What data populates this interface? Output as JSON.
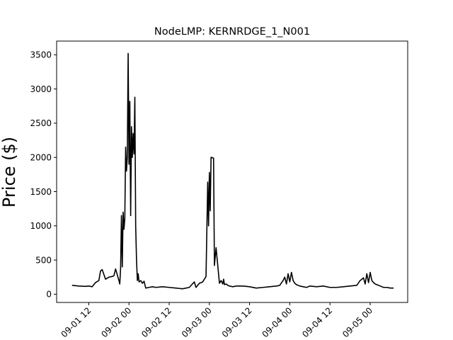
{
  "chart_data": {
    "type": "line",
    "title": "NodeLMP: KERNRDGE_1_N001",
    "xlabel": "",
    "ylabel": "Price ($)",
    "xlim": [
      "2019-09-01 02:24",
      "2019-09-05 11:12"
    ],
    "ylim": [
      -120,
      3700
    ],
    "x_ticks": [
      "2019-09-01 12:00",
      "2019-09-02 00:00",
      "2019-09-02 12:00",
      "2019-09-03 00:00",
      "2019-09-03 12:00",
      "2019-09-04 00:00",
      "2019-09-04 12:00",
      "2019-09-05 00:00"
    ],
    "x_tick_labels": [
      "09-01 12",
      "09-02 00",
      "09-02 12",
      "09-03 00",
      "09-03 12",
      "09-04 00",
      "09-04 12",
      "09-05 00"
    ],
    "y_ticks": [
      0,
      500,
      1000,
      1500,
      2000,
      2500,
      3000,
      3500
    ],
    "y_tick_labels": [
      "0",
      "500",
      "1000",
      "1500",
      "2000",
      "2500",
      "3000",
      "3500"
    ],
    "grid": false,
    "series": [
      {
        "color": "#000000",
        "x": [
          "2019-09-01 07:00",
          "2019-09-01 09:00",
          "2019-09-01 11:00",
          "2019-09-01 12:00",
          "2019-09-01 13:00",
          "2019-09-01 14:00",
          "2019-09-01 15:00",
          "2019-09-01 15:30",
          "2019-09-01 16:00",
          "2019-09-01 17:00",
          "2019-09-01 18:00",
          "2019-09-01 19:00",
          "2019-09-01 19:30",
          "2019-09-01 20:00",
          "2019-09-01 21:00",
          "2019-09-01 21:15",
          "2019-09-01 21:30",
          "2019-09-01 21:45",
          "2019-09-01 22:00",
          "2019-09-01 22:15",
          "2019-09-01 22:30",
          "2019-09-01 22:45",
          "2019-09-01 23:00",
          "2019-09-01 23:15",
          "2019-09-01 23:30",
          "2019-09-01 23:45",
          "2019-09-02 00:00",
          "2019-09-02 00:15",
          "2019-09-02 00:30",
          "2019-09-02 00:45",
          "2019-09-02 01:00",
          "2019-09-02 01:15",
          "2019-09-02 01:30",
          "2019-09-02 01:45",
          "2019-09-02 02:00",
          "2019-09-02 02:15",
          "2019-09-02 02:30",
          "2019-09-02 02:45",
          "2019-09-02 03:00",
          "2019-09-02 03:30",
          "2019-09-02 04:00",
          "2019-09-02 04:30",
          "2019-09-02 05:00",
          "2019-09-02 06:00",
          "2019-09-02 07:00",
          "2019-09-02 08:00",
          "2019-09-02 10:00",
          "2019-09-02 12:00",
          "2019-09-02 14:00",
          "2019-09-02 16:00",
          "2019-09-02 18:00",
          "2019-09-02 19:30",
          "2019-09-02 20:00",
          "2019-09-02 21:00",
          "2019-09-02 22:00",
          "2019-09-02 23:00",
          "2019-09-02 23:30",
          "2019-09-02 23:45",
          "2019-09-03 00:00",
          "2019-09-03 00:15",
          "2019-09-03 00:30",
          "2019-09-03 00:45",
          "2019-09-03 01:00",
          "2019-09-03 01:15",
          "2019-09-03 01:30",
          "2019-09-03 02:00",
          "2019-09-03 03:00",
          "2019-09-03 03:30",
          "2019-09-03 04:00",
          "2019-09-03 04:15",
          "2019-09-03 04:30",
          "2019-09-03 05:00",
          "2019-09-03 05:30",
          "2019-09-03 06:00",
          "2019-09-03 07:00",
          "2019-09-03 08:00",
          "2019-09-03 10:00",
          "2019-09-03 12:00",
          "2019-09-03 14:00",
          "2019-09-03 16:00",
          "2019-09-03 18:00",
          "2019-09-03 20:00",
          "2019-09-03 21:00",
          "2019-09-03 22:00",
          "2019-09-03 22:30",
          "2019-09-03 23:00",
          "2019-09-03 23:30",
          "2019-09-04 00:00",
          "2019-09-04 00:30",
          "2019-09-04 01:00",
          "2019-09-04 01:30",
          "2019-09-04 02:00",
          "2019-09-04 03:00",
          "2019-09-04 04:00",
          "2019-09-04 05:00",
          "2019-09-04 06:00",
          "2019-09-04 08:00",
          "2019-09-04 10:00",
          "2019-09-04 12:00",
          "2019-09-04 14:00",
          "2019-09-04 16:00",
          "2019-09-04 18:00",
          "2019-09-04 20:00",
          "2019-09-04 21:00",
          "2019-09-04 22:00",
          "2019-09-04 22:30",
          "2019-09-04 23:00",
          "2019-09-04 23:30",
          "2019-09-05 00:00",
          "2019-09-05 00:30",
          "2019-09-05 01:00",
          "2019-09-05 01:30",
          "2019-09-05 02:00",
          "2019-09-05 03:00",
          "2019-09-05 04:00",
          "2019-09-05 05:00",
          "2019-09-05 06:00",
          "2019-09-05 07:00"
        ],
        "values": [
          130,
          120,
          115,
          120,
          110,
          170,
          200,
          340,
          360,
          220,
          250,
          260,
          270,
          370,
          200,
          150,
          380,
          1150,
          400,
          1200,
          950,
          1100,
          2150,
          1800,
          2000,
          3520,
          1900,
          2820,
          1150,
          2450,
          2000,
          2350,
          2050,
          2880,
          1000,
          500,
          200,
          300,
          180,
          200,
          160,
          190,
          90,
          100,
          110,
          100,
          110,
          100,
          90,
          80,
          100,
          180,
          100,
          160,
          180,
          260,
          1640,
          1000,
          1780,
          1220,
          2000,
          2000,
          1990,
          1990,
          420,
          680,
          160,
          200,
          150,
          220,
          140,
          150,
          130,
          120,
          110,
          120,
          120,
          110,
          90,
          100,
          110,
          120,
          130,
          200,
          250,
          150,
          300,
          180,
          320,
          200,
          160,
          140,
          120,
          110,
          100,
          120,
          110,
          120,
          100,
          100,
          110,
          120,
          130,
          200,
          240,
          150,
          300,
          170,
          320,
          200,
          170,
          150,
          140,
          120,
          100,
          100,
          90,
          90
        ]
      }
    ]
  }
}
